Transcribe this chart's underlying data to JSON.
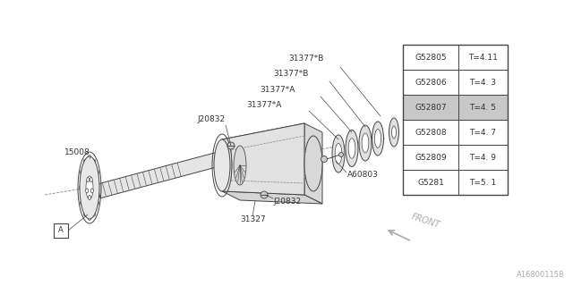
{
  "bg_color": "#ffffff",
  "line_color": "#444444",
  "text_color": "#333333",
  "table_data": [
    [
      "G52805",
      "T=4.11"
    ],
    [
      "G52806",
      "T=4. 3"
    ],
    [
      "G52807",
      "T=4. 5"
    ],
    [
      "G52808",
      "T=4. 7"
    ],
    [
      "G52809",
      "T=4. 9"
    ],
    [
      "G5281",
      "T=5. 1"
    ]
  ],
  "highlight_row": 2,
  "watermark": "A168001158",
  "label_fontsize": 6.5,
  "table_fontsize": 6.5
}
